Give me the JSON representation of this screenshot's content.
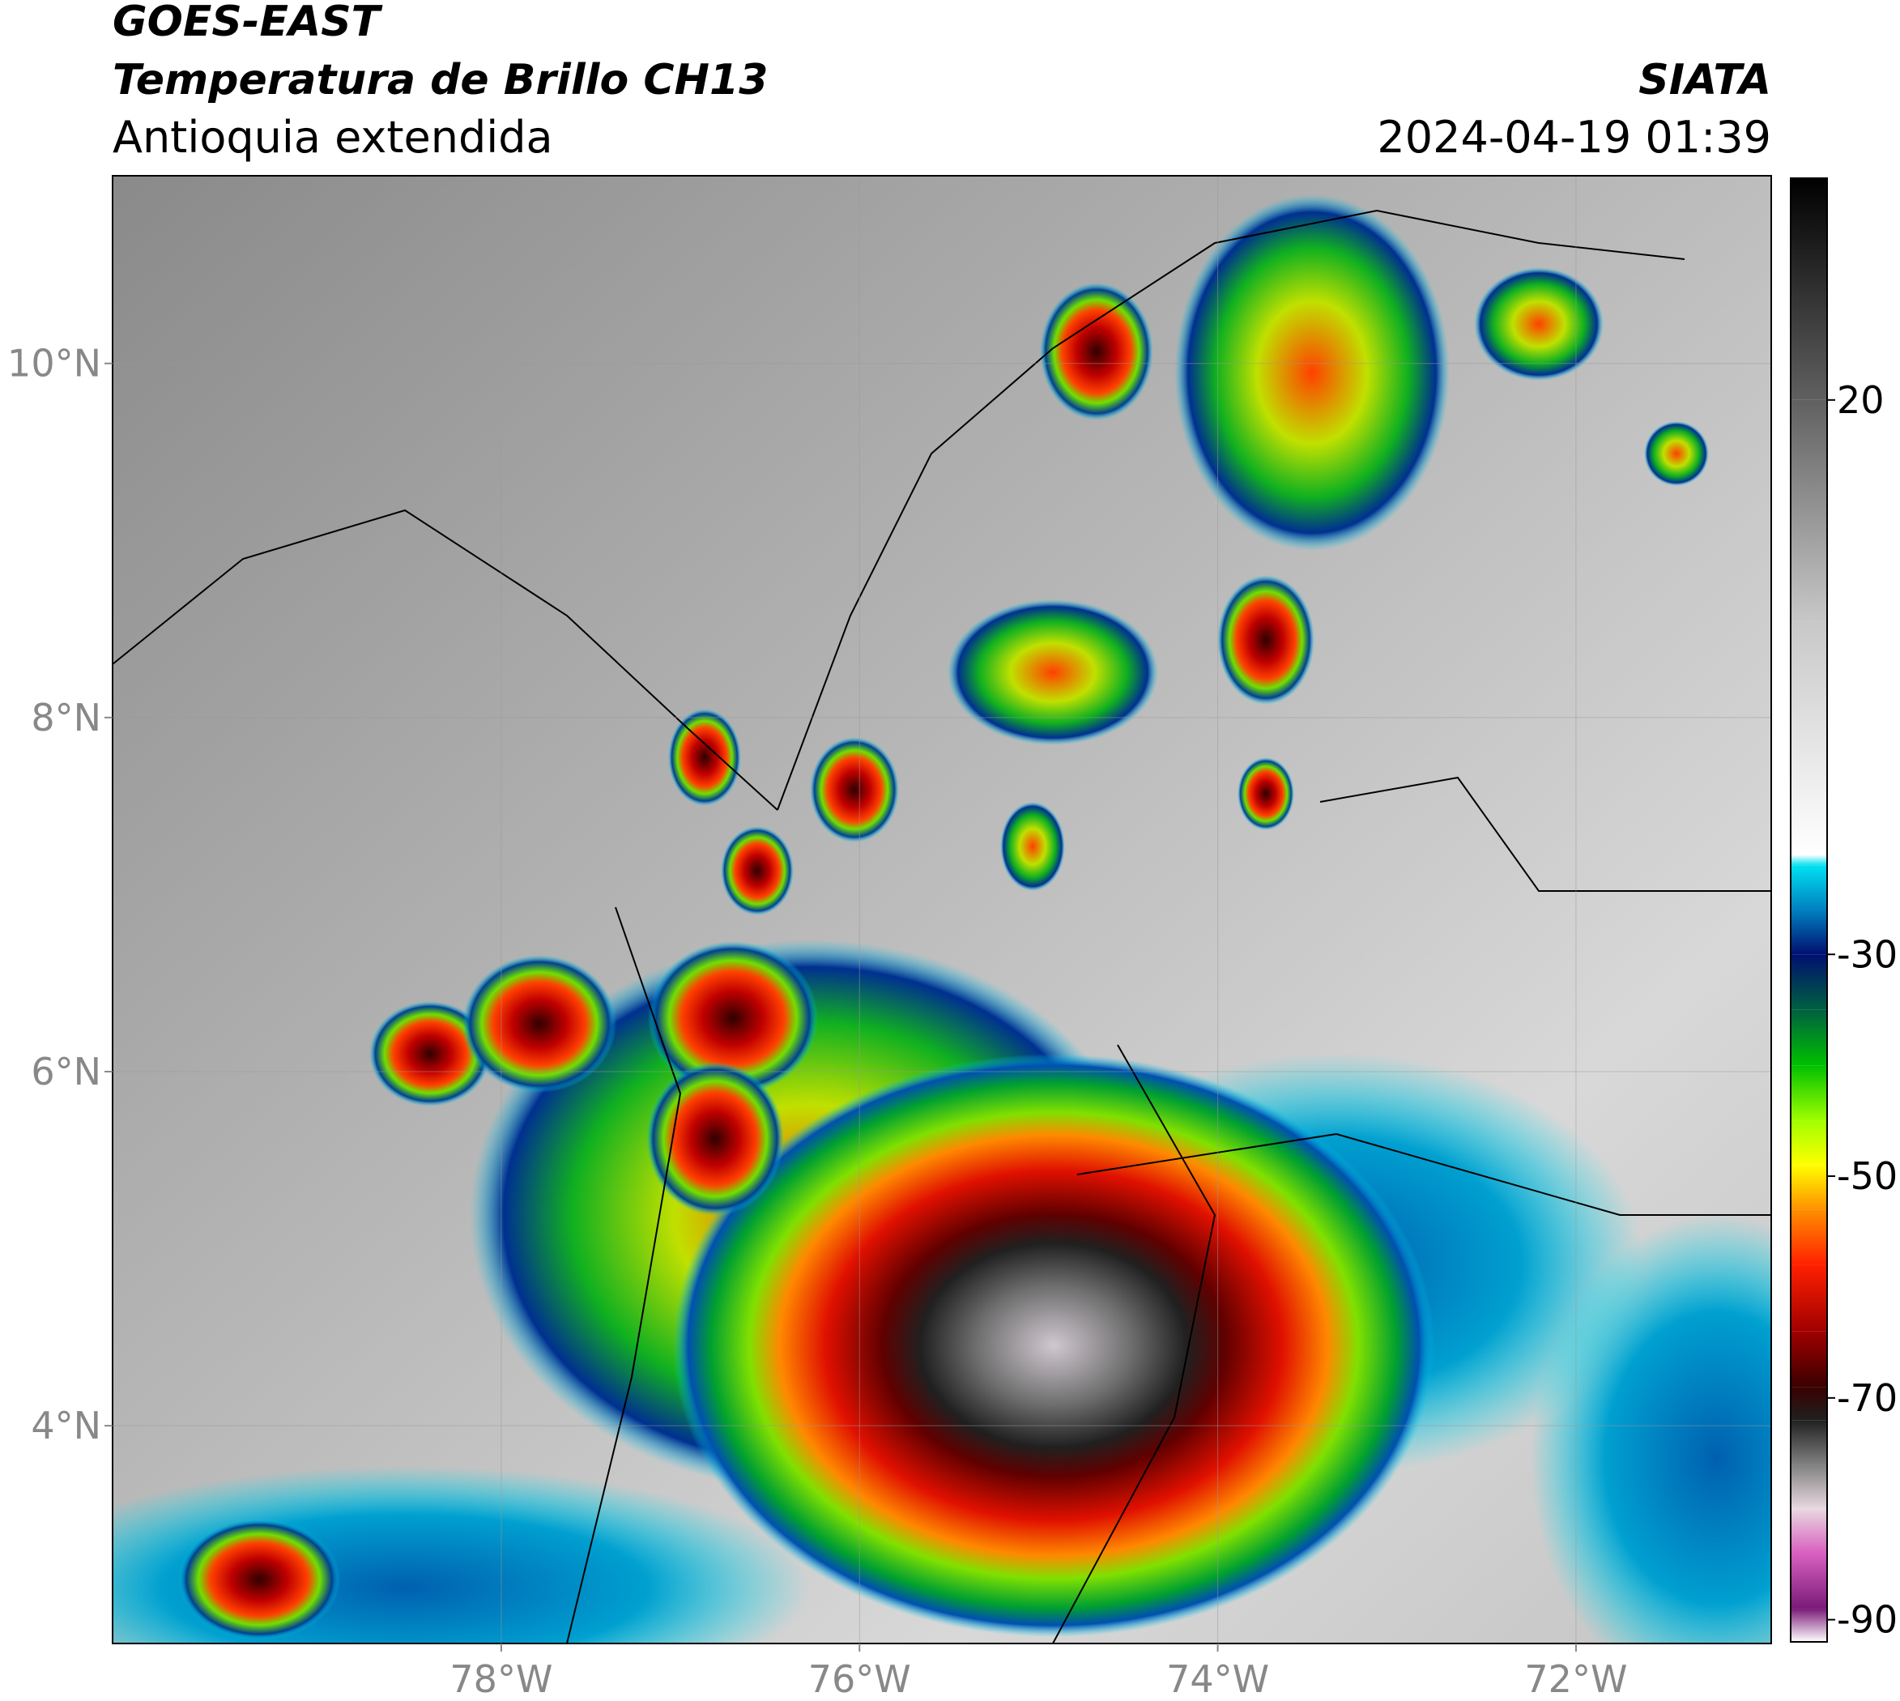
{
  "header": {
    "title": "GOES-EAST",
    "subtitle": "Temperatura de Brillo CH13",
    "region": "Antioquia extendida",
    "source": "SIATA",
    "datetime": "2024-04-19 01:39"
  },
  "map": {
    "xlim": [
      -80.17,
      -70.91
    ],
    "ylim": [
      2.77,
      11.06
    ],
    "xticks": [
      {
        "value": -78,
        "label": "78°W"
      },
      {
        "value": -76,
        "label": "76°W"
      },
      {
        "value": -74,
        "label": "74°W"
      },
      {
        "value": -72,
        "label": "72°W"
      }
    ],
    "yticks": [
      {
        "value": 4,
        "label": "4°N"
      },
      {
        "value": 6,
        "label": "6°N"
      },
      {
        "value": 8,
        "label": "8°N"
      },
      {
        "value": 10,
        "label": "10°N"
      }
    ],
    "grid": true
  },
  "colorbar": {
    "lim": [
      -92,
      40
    ],
    "ticks": [
      20,
      -30,
      -50,
      -70,
      -90
    ],
    "stops": [
      {
        "value": -92,
        "color": "#ffffff"
      },
      {
        "value": -89,
        "color": "#7a1a78"
      },
      {
        "value": -84,
        "color": "#d860c0"
      },
      {
        "value": -80,
        "color": "#e8d8e0"
      },
      {
        "value": -76,
        "color": "#808080"
      },
      {
        "value": -72,
        "color": "#202020"
      },
      {
        "value": -69,
        "color": "#3a0000"
      },
      {
        "value": -64,
        "color": "#a00000"
      },
      {
        "value": -58,
        "color": "#ff2000"
      },
      {
        "value": -53,
        "color": "#ff9000"
      },
      {
        "value": -49,
        "color": "#ffff00"
      },
      {
        "value": -45,
        "color": "#a0ff00"
      },
      {
        "value": -40,
        "color": "#00c000"
      },
      {
        "value": -35,
        "color": "#006040"
      },
      {
        "value": -30,
        "color": "#001070"
      },
      {
        "value": -26,
        "color": "#0080c0"
      },
      {
        "value": -22,
        "color": "#00e0f0"
      },
      {
        "value": -21,
        "color": "#ffffff"
      },
      {
        "value": 0,
        "color": "#c8c8c8"
      },
      {
        "value": 20,
        "color": "#606060"
      },
      {
        "value": 40,
        "color": "#000000"
      }
    ]
  }
}
